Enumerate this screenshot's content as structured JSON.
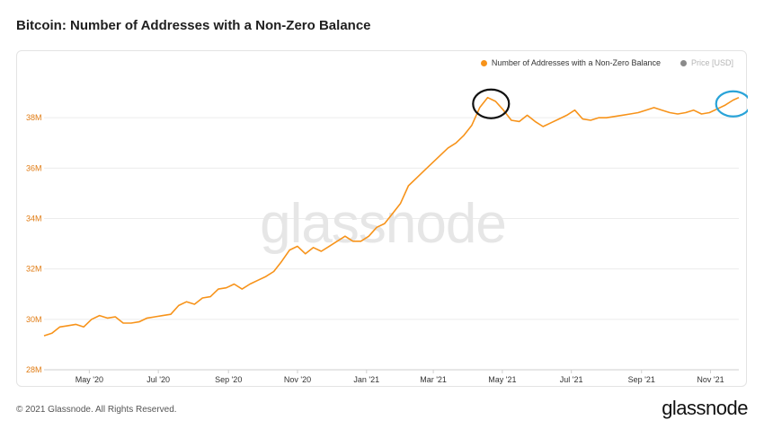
{
  "header": {
    "title": "Bitcoin: Number of Addresses with a Non-Zero Balance"
  },
  "legend": [
    {
      "label": "Number of Addresses with a Non-Zero Balance",
      "color": "#f7931a",
      "active": true
    },
    {
      "label": "Price [USD]",
      "color": "#8a8a8a",
      "active": false
    }
  ],
  "watermark": "glassnode",
  "footer": {
    "copyright": "© 2021 Glassnode. All Rights Reserved.",
    "logo": "glassnode"
  },
  "colors": {
    "line": "#f7931a",
    "axis_text": "#e07b12",
    "grid": "#ececec",
    "circle_black": "#111111",
    "circle_blue": "#29a3d8"
  },
  "chart_data": {
    "type": "line",
    "title": "Bitcoin: Number of Addresses with a Non-Zero Balance",
    "xlabel": "",
    "ylabel": "",
    "ylim": [
      28,
      40
    ],
    "y_unit": "M",
    "y_ticks": [
      "28M",
      "30M",
      "32M",
      "34M",
      "36M",
      "38M"
    ],
    "y_tick_values": [
      28,
      30,
      32,
      34,
      36,
      38
    ],
    "x_ticks": [
      "May '20",
      "Jul '20",
      "Sep '20",
      "Nov '20",
      "Jan '21",
      "Mar '21",
      "May '21",
      "Jul '21",
      "Sep '21",
      "Nov '21"
    ],
    "x_tick_dates": [
      "2020-05-01",
      "2020-07-01",
      "2020-09-01",
      "2020-11-01",
      "2021-01-01",
      "2021-03-01",
      "2021-05-01",
      "2021-07-01",
      "2021-09-01",
      "2021-11-01"
    ],
    "xlim": [
      "2020-03-22",
      "2021-11-26"
    ],
    "grid": true,
    "legend_position": "top-right",
    "series": [
      {
        "name": "Number of Addresses with a Non-Zero Balance",
        "x": [
          "2020-03-22",
          "2020-03-29",
          "2020-04-05",
          "2020-04-12",
          "2020-04-19",
          "2020-04-26",
          "2020-05-03",
          "2020-05-10",
          "2020-05-17",
          "2020-05-24",
          "2020-05-31",
          "2020-06-07",
          "2020-06-14",
          "2020-06-21",
          "2020-06-28",
          "2020-07-05",
          "2020-07-12",
          "2020-07-19",
          "2020-07-26",
          "2020-08-02",
          "2020-08-09",
          "2020-08-16",
          "2020-08-23",
          "2020-08-30",
          "2020-09-06",
          "2020-09-13",
          "2020-09-20",
          "2020-09-27",
          "2020-10-04",
          "2020-10-11",
          "2020-10-18",
          "2020-10-25",
          "2020-11-01",
          "2020-11-08",
          "2020-11-15",
          "2020-11-22",
          "2020-11-29",
          "2020-12-06",
          "2020-12-13",
          "2020-12-20",
          "2020-12-27",
          "2021-01-03",
          "2021-01-10",
          "2021-01-17",
          "2021-01-24",
          "2021-01-31",
          "2021-02-07",
          "2021-02-14",
          "2021-02-21",
          "2021-02-28",
          "2021-03-07",
          "2021-03-14",
          "2021-03-21",
          "2021-03-28",
          "2021-04-04",
          "2021-04-11",
          "2021-04-18",
          "2021-04-25",
          "2021-05-02",
          "2021-05-09",
          "2021-05-16",
          "2021-05-23",
          "2021-05-30",
          "2021-06-06",
          "2021-06-13",
          "2021-06-20",
          "2021-06-27",
          "2021-07-04",
          "2021-07-11",
          "2021-07-18",
          "2021-07-25",
          "2021-08-01",
          "2021-08-08",
          "2021-08-15",
          "2021-08-22",
          "2021-08-29",
          "2021-09-05",
          "2021-09-12",
          "2021-09-19",
          "2021-09-26",
          "2021-10-03",
          "2021-10-10",
          "2021-10-17",
          "2021-10-24",
          "2021-10-31",
          "2021-11-07",
          "2021-11-14",
          "2021-11-21",
          "2021-11-26"
        ],
        "values": [
          29.35,
          29.45,
          29.7,
          29.75,
          29.8,
          29.7,
          30.0,
          30.15,
          30.05,
          30.1,
          29.85,
          29.85,
          29.9,
          30.05,
          30.1,
          30.15,
          30.2,
          30.55,
          30.7,
          30.6,
          30.85,
          30.9,
          31.2,
          31.25,
          31.4,
          31.2,
          31.4,
          31.55,
          31.7,
          31.9,
          32.3,
          32.75,
          32.9,
          32.6,
          32.85,
          32.7,
          32.9,
          33.1,
          33.3,
          33.1,
          33.1,
          33.3,
          33.65,
          33.8,
          34.2,
          34.6,
          35.3,
          35.6,
          35.9,
          36.2,
          36.5,
          36.8,
          37.0,
          37.3,
          37.7,
          38.4,
          38.8,
          38.65,
          38.3,
          37.9,
          37.85,
          38.1,
          37.85,
          37.65,
          37.8,
          37.95,
          38.1,
          38.3,
          37.95,
          37.9,
          38.0,
          38.0,
          38.05,
          38.1,
          38.15,
          38.2,
          38.3,
          38.4,
          38.3,
          38.2,
          38.15,
          38.2,
          38.3,
          38.15,
          38.2,
          38.35,
          38.5,
          38.7,
          38.8
        ]
      }
    ]
  }
}
